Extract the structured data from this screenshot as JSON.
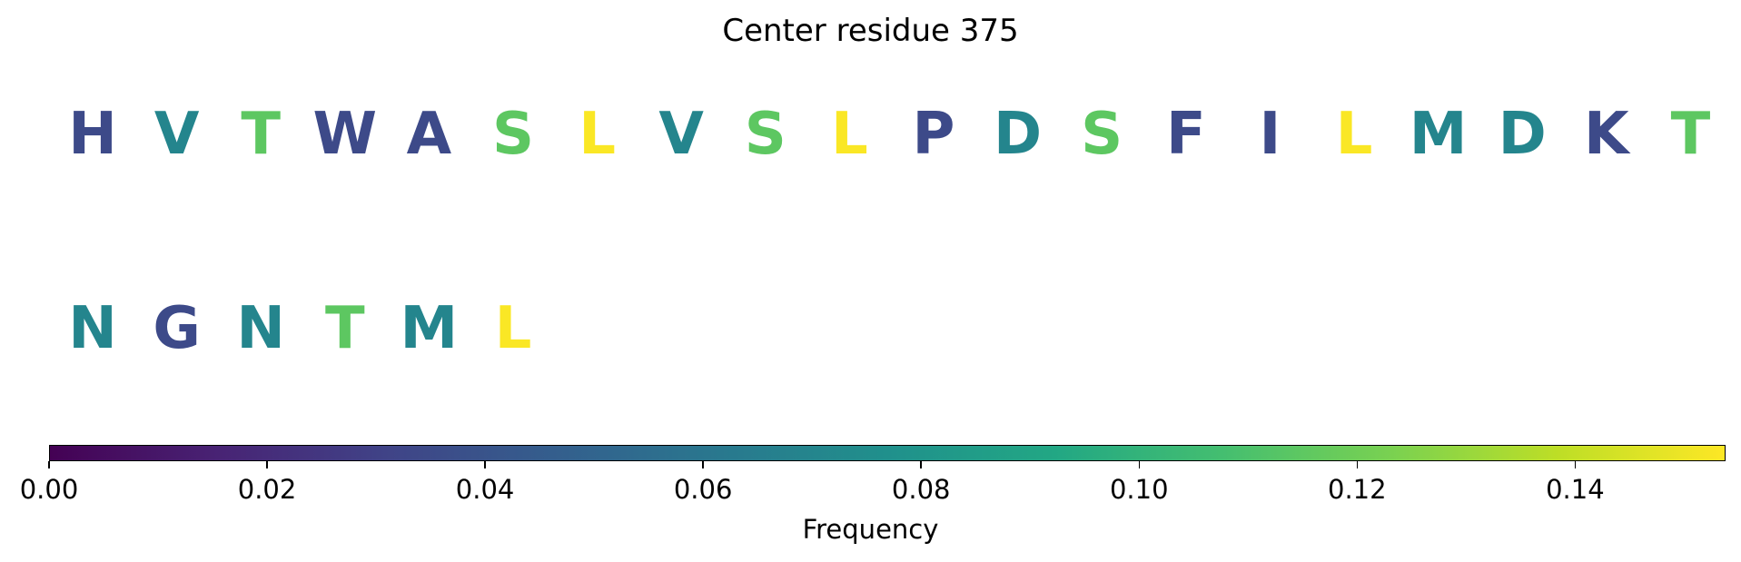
{
  "chart_data": {
    "type": "sequence-logo",
    "title": "Center residue 375",
    "residues": [
      {
        "letter": "H",
        "frequency": 0.035
      },
      {
        "letter": "V",
        "frequency": 0.07
      },
      {
        "letter": "T",
        "frequency": 0.115
      },
      {
        "letter": "W",
        "frequency": 0.035
      },
      {
        "letter": "A",
        "frequency": 0.035
      },
      {
        "letter": "S",
        "frequency": 0.115
      },
      {
        "letter": "L",
        "frequency": 0.153
      },
      {
        "letter": "V",
        "frequency": 0.07
      },
      {
        "letter": "S",
        "frequency": 0.115
      },
      {
        "letter": "L",
        "frequency": 0.153
      },
      {
        "letter": "P",
        "frequency": 0.035
      },
      {
        "letter": "D",
        "frequency": 0.07
      },
      {
        "letter": "S",
        "frequency": 0.115
      },
      {
        "letter": "F",
        "frequency": 0.035
      },
      {
        "letter": "I",
        "frequency": 0.035
      },
      {
        "letter": "L",
        "frequency": 0.153
      },
      {
        "letter": "M",
        "frequency": 0.07
      },
      {
        "letter": "D",
        "frequency": 0.07
      },
      {
        "letter": "K",
        "frequency": 0.035
      },
      {
        "letter": "T",
        "frequency": 0.115
      },
      {
        "letter": "N",
        "frequency": 0.07
      },
      {
        "letter": "G",
        "frequency": 0.035
      },
      {
        "letter": "N",
        "frequency": 0.07
      },
      {
        "letter": "T",
        "frequency": 0.115
      },
      {
        "letter": "M",
        "frequency": 0.07
      },
      {
        "letter": "L",
        "frequency": 0.153
      }
    ],
    "colorbar": {
      "label": "Frequency",
      "range": [
        0.0,
        0.1538
      ],
      "ticks": [
        "0.00",
        "0.02",
        "0.04",
        "0.06",
        "0.08",
        "0.10",
        "0.12",
        "0.14"
      ],
      "tick_values": [
        0.0,
        0.02,
        0.04,
        0.06,
        0.08,
        0.1,
        0.12,
        0.14
      ],
      "colormap": "viridis"
    }
  }
}
